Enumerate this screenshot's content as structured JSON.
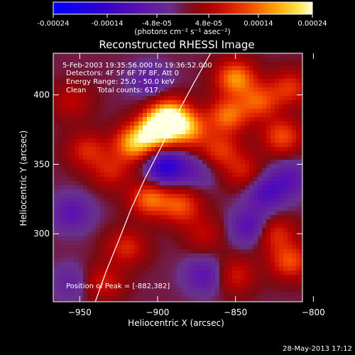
{
  "colorbar": {
    "tick_labels": [
      "-0.00024",
      "-0.00014",
      "-4.8e-05",
      "4.8e-05",
      "0.00014",
      "0.00024"
    ],
    "tick_values": [
      -0.00024,
      -0.00014,
      -4.8e-05,
      4.8e-05,
      0.00014,
      0.00024
    ],
    "range": [
      -0.00024,
      0.00024
    ],
    "unit_label": "(photons cm⁻² s⁻¹ asec⁻²)"
  },
  "footer": {
    "timestamp": "28-May-2013 17:12"
  },
  "chart_data": {
    "type": "heatmap",
    "title": "Reconstructed RHESSI Image",
    "xlabel": "Heliocentric X (arcsec)",
    "ylabel": "Heliocentric Y (arcsec)",
    "xlim": [
      -967,
      -807
    ],
    "ylim": [
      251,
      430
    ],
    "x_ticks": [
      -950,
      -900,
      -850,
      -800
    ],
    "x_tick_labels": [
      "−950",
      "−900",
      "−850",
      "−800"
    ],
    "y_ticks": [
      300,
      350,
      400
    ],
    "y_tick_labels": [
      "300",
      "350",
      "400"
    ],
    "colormap": "red-temperature with blue/purple for negative values",
    "annotations": [
      "5-Feb-2003 19:35:56.000 to 19:36:52.000",
      "Detectors: 4F 5F 6F 7F 8F, Att 0",
      "Energy Range: 25.0 - 50.0 keV",
      "Clean     Total counts: 617.",
      "Position of Peak = [-882,382]"
    ],
    "peak": {
      "x": -882,
      "y": 382
    },
    "limb_curve": {
      "x": [
        -940,
        -933,
        -925,
        -917,
        -908,
        -898,
        -888,
        -877,
        -866
      ],
      "y": [
        251,
        273,
        295,
        318,
        340,
        362,
        385,
        408,
        430
      ]
    },
    "sources": [
      {
        "x": -900,
        "y": 375,
        "value": 0.00024
      },
      {
        "x": -915,
        "y": 365,
        "value": 0.00018
      },
      {
        "x": -892,
        "y": 385,
        "value": 0.00019
      },
      {
        "x": -880,
        "y": 375,
        "value": 0.00015
      },
      {
        "x": -850,
        "y": 412,
        "value": 0.00016
      },
      {
        "x": -855,
        "y": 385,
        "value": 0.00014
      },
      {
        "x": -835,
        "y": 395,
        "value": 0.00012
      },
      {
        "x": -820,
        "y": 370,
        "value": 0.00012
      },
      {
        "x": -815,
        "y": 405,
        "value": 0.0001
      },
      {
        "x": -860,
        "y": 360,
        "value": 0.0001
      },
      {
        "x": -845,
        "y": 345,
        "value": 8e-05
      },
      {
        "x": -905,
        "y": 325,
        "value": 0.00014
      },
      {
        "x": -885,
        "y": 320,
        "value": 0.00012
      },
      {
        "x": -920,
        "y": 290,
        "value": 9e-05
      },
      {
        "x": -935,
        "y": 265,
        "value": 8e-05
      },
      {
        "x": -815,
        "y": 280,
        "value": 0.00012
      },
      {
        "x": -825,
        "y": 300,
        "value": 0.0001
      },
      {
        "x": -850,
        "y": 270,
        "value": 8e-05
      },
      {
        "x": -945,
        "y": 360,
        "value": 9e-05
      },
      {
        "x": -930,
        "y": 345,
        "value": 8e-05
      },
      {
        "x": -955,
        "y": 395,
        "value": 6e-05
      },
      {
        "x": -870,
        "y": 300,
        "value": 6e-05
      },
      {
        "x": -895,
        "y": 348,
        "value": -0.00016
      },
      {
        "x": -830,
        "y": 330,
        "value": -0.0001
      },
      {
        "x": -840,
        "y": 305,
        "value": -0.0001
      },
      {
        "x": -955,
        "y": 315,
        "value": -8e-05
      },
      {
        "x": -870,
        "y": 270,
        "value": -8e-05
      },
      {
        "x": -905,
        "y": 410,
        "value": -6e-05
      },
      {
        "x": -815,
        "y": 340,
        "value": -7e-05
      },
      {
        "x": -955,
        "y": 265,
        "value": -5e-05
      },
      {
        "x": -875,
        "y": 345,
        "value": -5e-05
      }
    ]
  }
}
